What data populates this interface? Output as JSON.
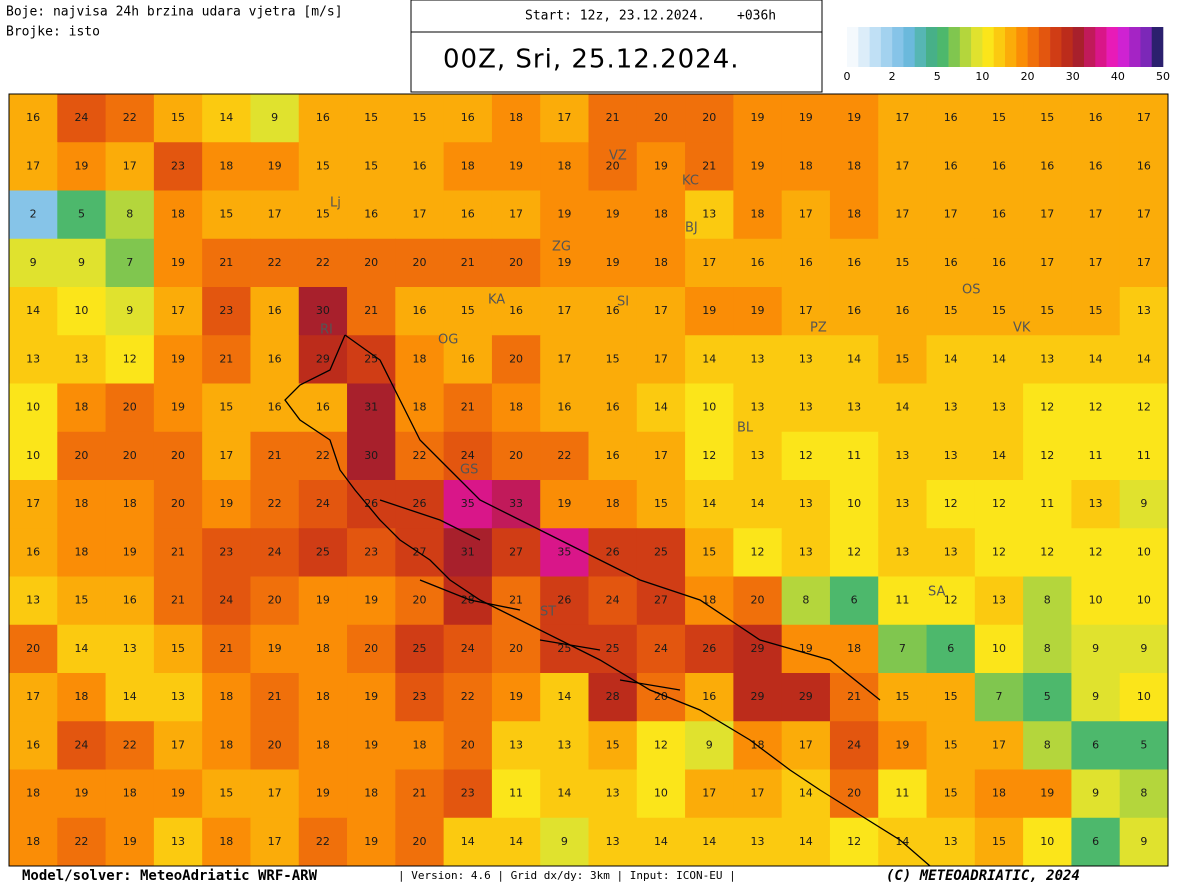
{
  "header": {
    "legend_line1": "Boje: najvisa 24h brzina udara vjetra [m/s]",
    "legend_line2": "Brojke: isto",
    "start": "Start: 12z, 23.12.2024.",
    "lead": "+036h",
    "valid": "00Z, Sri, 25.12.2024."
  },
  "colorbar": {
    "ticks": [
      0,
      2,
      5,
      10,
      20,
      30,
      40,
      50
    ],
    "colors": [
      "#f4f9fd",
      "#dcedf9",
      "#c0e0f5",
      "#a3d2ef",
      "#86c4e8",
      "#6bb9dc",
      "#56b6b4",
      "#47b088",
      "#4db86c",
      "#80c64f",
      "#b4d63c",
      "#e0e22e",
      "#fbe51a",
      "#fbca10",
      "#fbac09",
      "#fa8d06",
      "#f0700b",
      "#e3560f",
      "#d03d15",
      "#bc2c1b",
      "#a8202c",
      "#c11a5a",
      "#d91689",
      "#e81bb8",
      "#cf22d2",
      "#a524c5",
      "#7c28b8",
      "#2b206e"
    ]
  },
  "map": {
    "stations": [
      "Lj",
      "ZG",
      "KA",
      "SI",
      "VZ",
      "KC",
      "BJ",
      "OS",
      "PZ",
      "VK",
      "RI",
      "GS",
      "BL",
      "SA",
      "ST",
      "OG"
    ],
    "grid": [
      [
        16,
        24,
        22,
        15,
        14,
        9,
        16,
        15,
        15,
        16,
        18,
        17,
        21,
        20,
        20,
        19,
        19,
        19,
        17,
        16,
        15,
        15,
        16,
        17
      ],
      [
        17,
        19,
        17,
        23,
        18,
        19,
        15,
        15,
        16,
        18,
        19,
        18,
        20,
        19,
        21,
        19,
        18,
        18,
        17,
        16,
        16,
        16,
        16,
        16
      ],
      [
        2,
        5,
        8,
        18,
        15,
        17,
        15,
        16,
        17,
        16,
        17,
        19,
        19,
        18,
        13,
        18,
        17,
        18,
        17,
        17,
        16,
        17,
        17,
        17
      ],
      [
        9,
        9,
        7,
        19,
        21,
        22,
        22,
        20,
        20,
        21,
        20,
        19,
        19,
        18,
        17,
        16,
        16,
        16,
        15,
        16,
        16,
        17,
        17,
        17
      ],
      [
        14,
        10,
        9,
        17,
        23,
        16,
        30,
        21,
        16,
        15,
        16,
        17,
        16,
        17,
        19,
        19,
        17,
        16,
        16,
        15,
        15,
        15,
        15,
        13
      ],
      [
        13,
        13,
        12,
        19,
        21,
        16,
        29,
        25,
        18,
        16,
        20,
        17,
        15,
        17,
        14,
        13,
        13,
        14,
        15,
        14,
        14,
        13,
        14,
        14
      ],
      [
        10,
        18,
        20,
        19,
        15,
        16,
        16,
        31,
        18,
        21,
        18,
        16,
        16,
        14,
        10,
        13,
        13,
        13,
        14,
        13,
        13,
        12,
        12,
        12
      ],
      [
        10,
        20,
        20,
        20,
        17,
        21,
        22,
        30,
        22,
        24,
        20,
        22,
        16,
        17,
        12,
        13,
        12,
        11,
        13,
        13,
        14,
        12,
        11,
        11
      ],
      [
        17,
        18,
        18,
        20,
        19,
        22,
        24,
        26,
        26,
        35,
        33,
        19,
        18,
        15,
        14,
        14,
        13,
        10,
        13,
        12,
        12,
        11,
        13,
        9
      ],
      [
        16,
        18,
        19,
        21,
        23,
        24,
        25,
        23,
        27,
        31,
        27,
        35,
        26,
        25,
        15,
        12,
        13,
        12,
        13,
        13,
        12,
        12,
        12,
        10
      ],
      [
        13,
        15,
        16,
        21,
        24,
        20,
        19,
        19,
        20,
        28,
        21,
        26,
        24,
        27,
        18,
        20,
        8,
        6,
        11,
        12,
        13,
        8,
        10,
        10
      ],
      [
        20,
        14,
        13,
        15,
        21,
        19,
        18,
        20,
        25,
        24,
        20,
        25,
        25,
        24,
        26,
        29,
        19,
        18,
        7,
        6,
        10,
        8,
        9,
        9
      ],
      [
        17,
        18,
        14,
        13,
        18,
        21,
        18,
        19,
        23,
        22,
        19,
        14,
        28,
        20,
        16,
        29,
        29,
        21,
        15,
        15,
        7,
        5,
        9,
        10
      ],
      [
        16,
        24,
        22,
        17,
        18,
        20,
        18,
        19,
        18,
        20,
        13,
        13,
        15,
        12,
        9,
        18,
        17,
        24,
        19,
        15,
        17,
        8,
        6,
        5
      ],
      [
        18,
        19,
        18,
        19,
        15,
        17,
        19,
        18,
        21,
        23,
        11,
        14,
        13,
        10,
        17,
        17,
        14,
        20,
        11,
        15,
        18,
        19,
        9,
        8
      ],
      [
        18,
        22,
        19,
        13,
        18,
        17,
        22,
        19,
        20,
        14,
        14,
        9,
        13,
        14,
        14,
        13,
        14,
        12,
        14,
        13,
        15,
        10,
        6,
        9
      ]
    ]
  },
  "footer": {
    "model": "Model/solver: MeteoAdriatic WRF-ARW",
    "info": "| Version: 4.6 | Grid dx/dy: 3km | Input: ICON-EU |",
    "copyright": "(C) METEOADRIATIC, 2024"
  }
}
